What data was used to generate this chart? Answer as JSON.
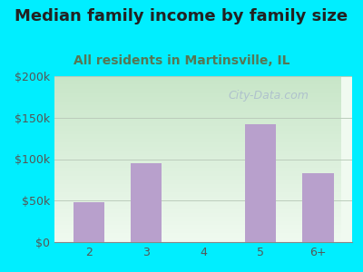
{
  "title": "Median family income by family size",
  "subtitle": "All residents in Martinsville, IL",
  "categories": [
    "2",
    "3",
    "4",
    "5",
    "6+"
  ],
  "values": [
    48000,
    95000,
    0,
    142000,
    83000
  ],
  "bar_color": "#b8a0cc",
  "background_outer": "#00eeff",
  "background_inner_top": "#f0faf0",
  "background_inner_bottom": "#d0ead0",
  "ylim": [
    0,
    200000
  ],
  "yticks": [
    0,
    50000,
    100000,
    150000,
    200000
  ],
  "ytick_labels": [
    "$0",
    "$50k",
    "$100k",
    "$150k",
    "$200k"
  ],
  "title_fontsize": 13,
  "subtitle_fontsize": 10,
  "title_color": "#222222",
  "subtitle_color": "#557755",
  "tick_color": "#555555",
  "grid_color": "#bbccbb",
  "watermark": "City-Data.com",
  "watermark_color": "#aabbcc"
}
